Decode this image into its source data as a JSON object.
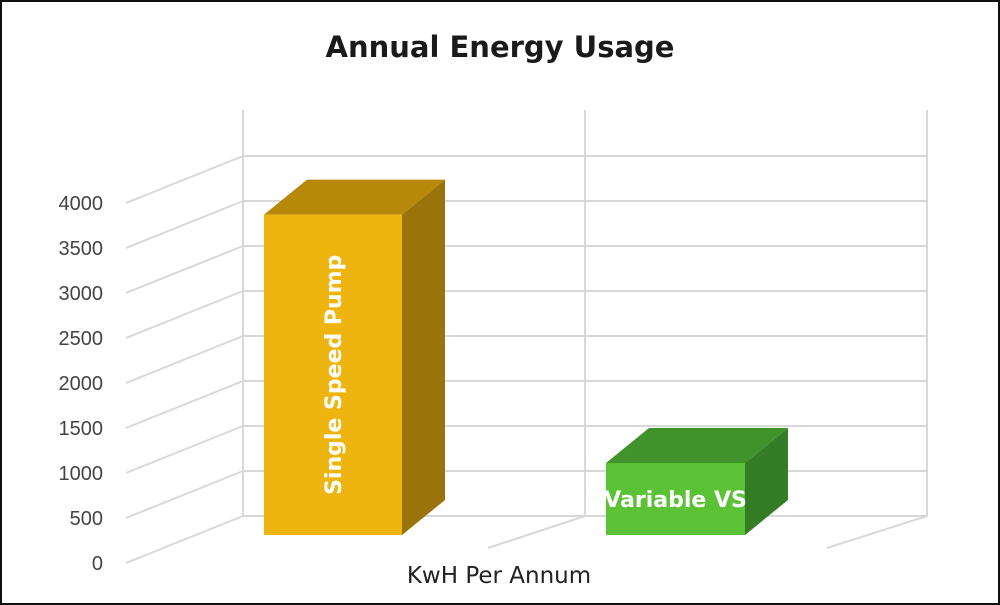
{
  "chart_data": {
    "type": "bar",
    "title": "Annual Energy Usage",
    "xlabel": "KwH Per Annum",
    "ylabel": "",
    "ylim": [
      0,
      4000
    ],
    "yticks": [
      "0",
      "500",
      "1000",
      "1500",
      "2000",
      "2500",
      "3000",
      "3500",
      "4000"
    ],
    "grid": true,
    "categories": [
      "Single Speed Pump",
      "Variable VS"
    ],
    "values": [
      3560,
      800
    ],
    "colors": {
      "Single Speed Pump": {
        "front": "#EEB511",
        "top": "#B8880A",
        "side": "#9A740A"
      },
      "Variable VS": {
        "front": "#5BC236",
        "top": "#3F932A",
        "side": "#357D24"
      }
    }
  }
}
